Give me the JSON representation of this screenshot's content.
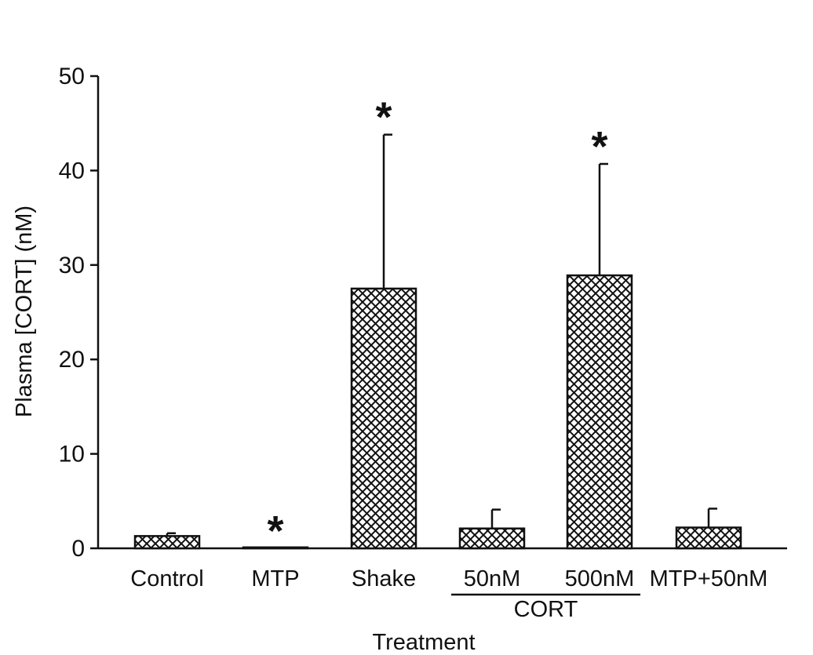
{
  "chart_data": {
    "type": "bar",
    "xlabel": "Treatment",
    "ylabel": "Plasma [CORT] (nM)",
    "ylim": [
      0,
      50
    ],
    "yticks": [
      "0",
      "10",
      "20",
      "30",
      "40",
      "50"
    ],
    "categories": [
      "Control",
      "MTP",
      "Shake",
      "50nM",
      "500nM",
      "MTP+50nM"
    ],
    "values": [
      1.3,
      0.1,
      27.5,
      2.1,
      28.9,
      2.2
    ],
    "error_upper": [
      1.6,
      0.1,
      43.8,
      4.1,
      40.7,
      4.2
    ],
    "significance": [
      "",
      "*",
      "*",
      "",
      "*",
      ""
    ],
    "group_label": "CORT",
    "group_categories": [
      "50nM",
      "500nM"
    ],
    "grid": false,
    "legend": false
  }
}
